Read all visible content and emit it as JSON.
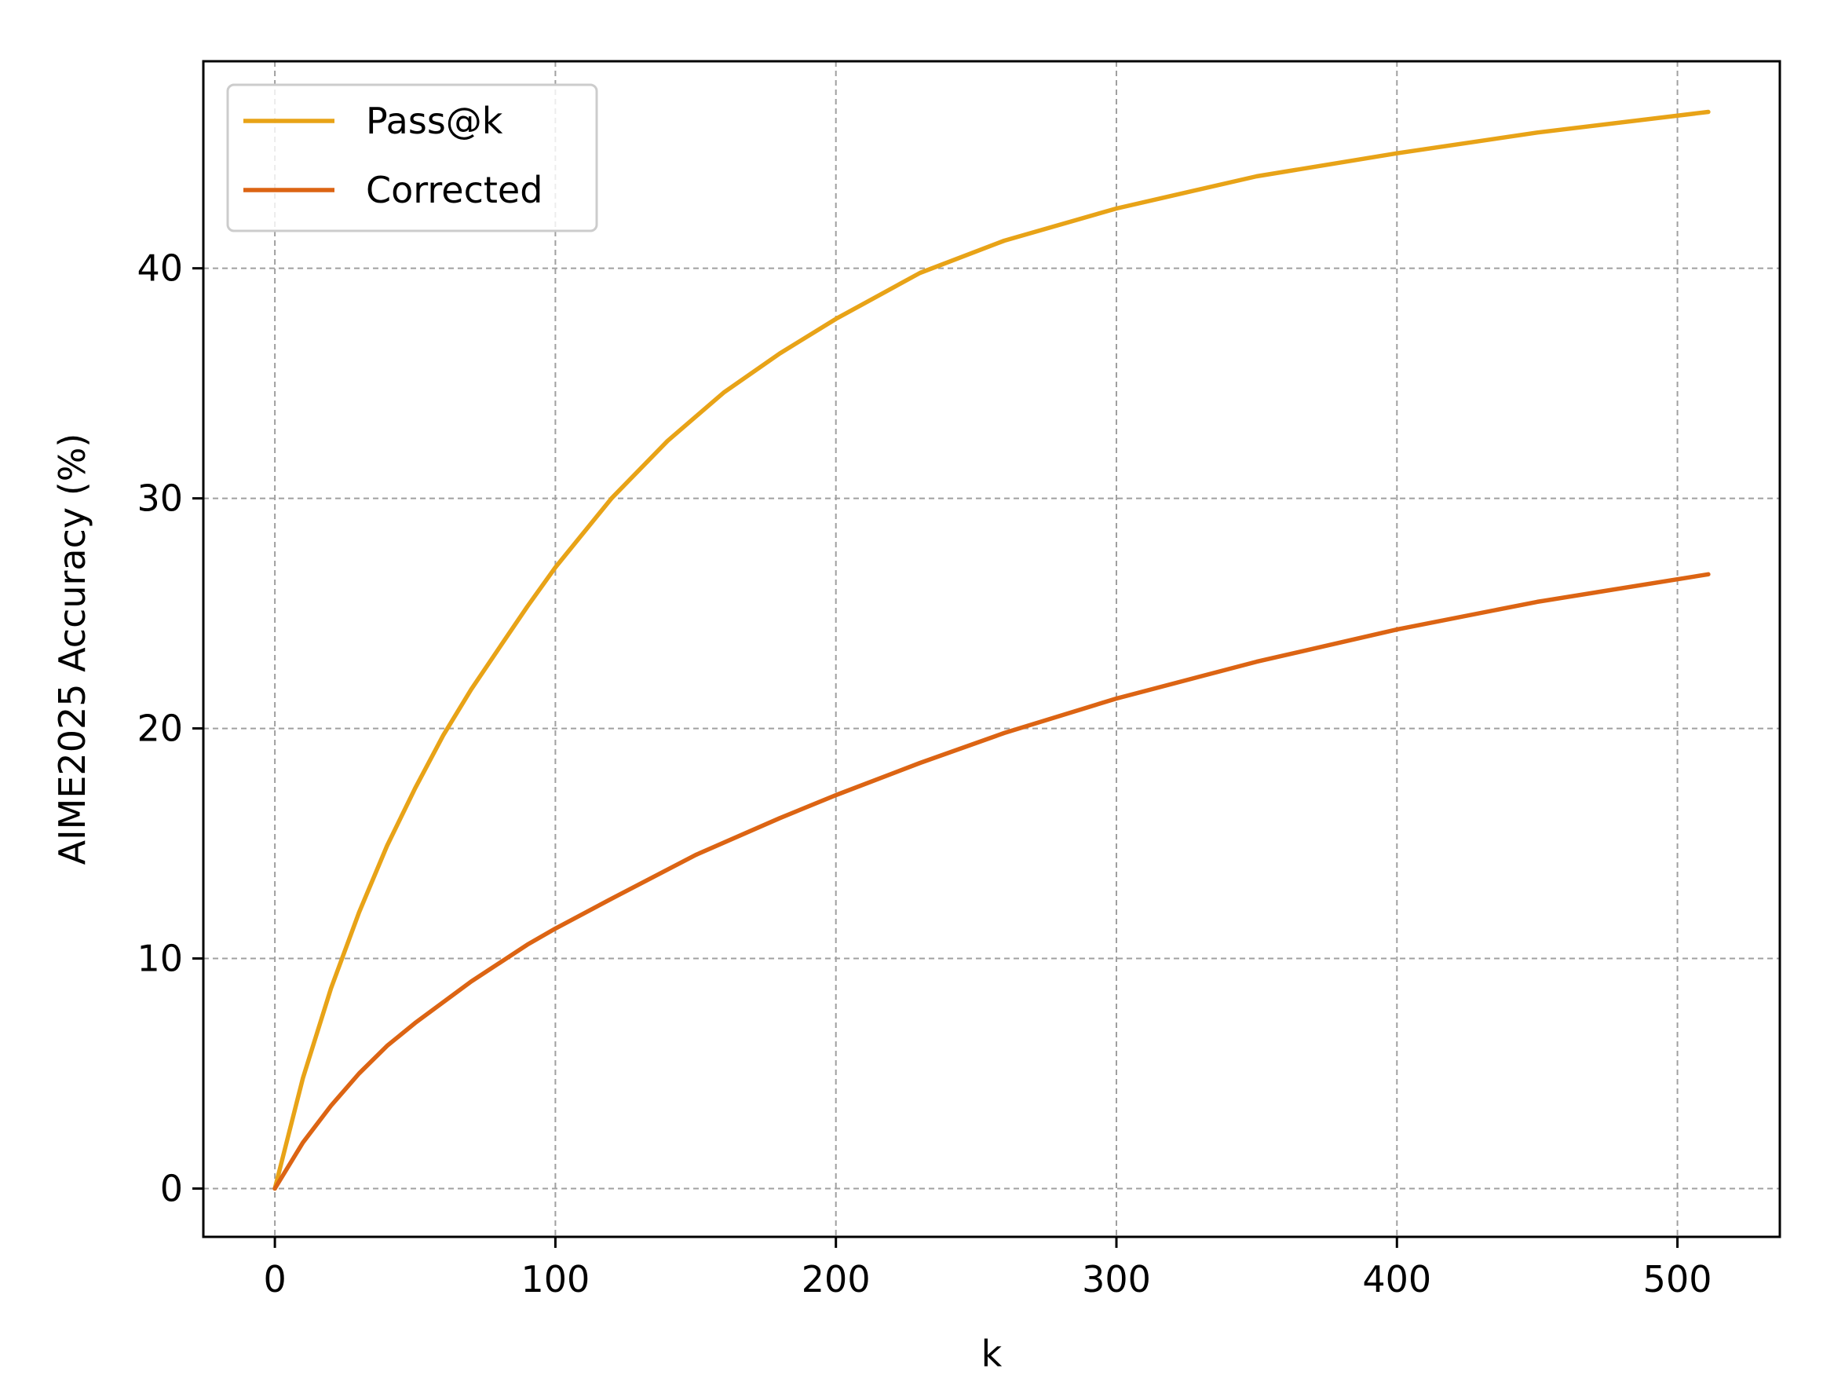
{
  "chart_data": {
    "type": "line",
    "title": "",
    "xlabel": "k",
    "ylabel": "AIME2025 Accuracy (%)",
    "xlim": [
      -25.5,
      536.5
    ],
    "ylim": [
      -2.1,
      49.0
    ],
    "x_ticks": [
      0,
      100,
      200,
      300,
      400,
      500
    ],
    "y_ticks": [
      0,
      10,
      20,
      30,
      40
    ],
    "grid": true,
    "grid_style": "dashed",
    "legend_position": "top-left",
    "series": [
      {
        "name": "Pass@k",
        "color": "#E8A317",
        "x": [
          0,
          10,
          20,
          30,
          40,
          50,
          60,
          70,
          80,
          90,
          100,
          120,
          140,
          160,
          180,
          200,
          230,
          260,
          300,
          350,
          400,
          450,
          511
        ],
        "y": [
          0,
          4.8,
          8.7,
          12.0,
          14.9,
          17.4,
          19.7,
          21.7,
          23.5,
          25.3,
          27.0,
          30.0,
          32.5,
          34.6,
          36.3,
          37.8,
          39.8,
          41.2,
          42.6,
          44.0,
          45.0,
          45.9,
          46.8
        ]
      },
      {
        "name": "Corrected",
        "color": "#DC6413",
        "x": [
          0,
          10,
          20,
          30,
          40,
          50,
          60,
          70,
          80,
          90,
          100,
          120,
          150,
          180,
          200,
          230,
          260,
          300,
          350,
          400,
          450,
          511
        ],
        "y": [
          0,
          2.0,
          3.6,
          5.0,
          6.2,
          7.2,
          8.1,
          9.0,
          9.8,
          10.6,
          11.3,
          12.6,
          14.5,
          16.1,
          17.1,
          18.5,
          19.8,
          21.3,
          22.9,
          24.3,
          25.5,
          26.7
        ]
      }
    ]
  }
}
